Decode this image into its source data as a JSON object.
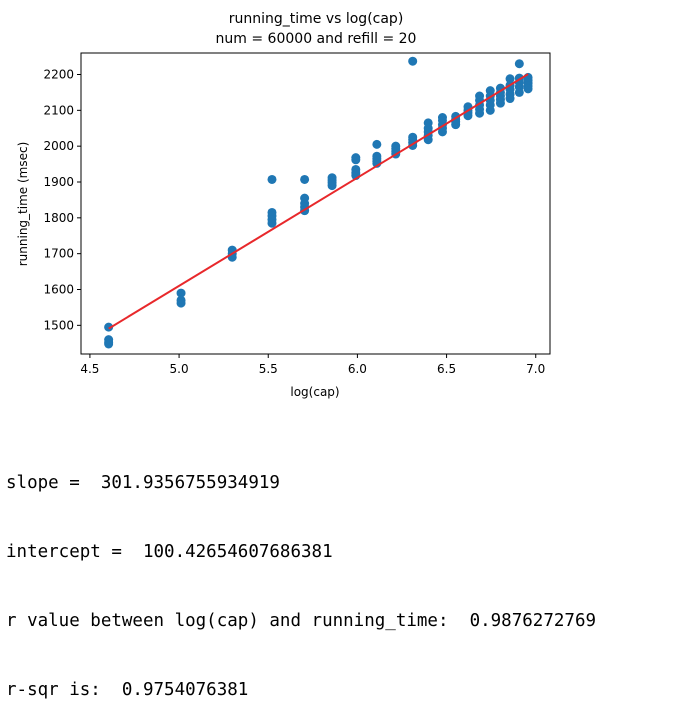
{
  "chart_data": {
    "type": "scatter",
    "title": "running_time vs log(cap)",
    "subtitle": "num = 60000 and refill = 20",
    "xlabel": "log(cap)",
    "ylabel": "running_time (msec)",
    "xlim": [
      4.45,
      7.08
    ],
    "ylim": [
      1420,
      2260
    ],
    "xticks": [
      4.5,
      5.0,
      5.5,
      6.0,
      6.5,
      7.0
    ],
    "xtick_labels": [
      "4.5",
      "5.0",
      "5.5",
      "6.0",
      "6.5",
      "7.0"
    ],
    "yticks": [
      1500,
      1600,
      1700,
      1800,
      1900,
      2000,
      2100,
      2200
    ],
    "ytick_labels": [
      "1500",
      "1600",
      "1700",
      "1800",
      "1900",
      "2000",
      "2100",
      "2200"
    ],
    "grid": false,
    "point_color": "#1f77b4",
    "line_color": "#e8282b",
    "points": [
      [
        4.605,
        1495
      ],
      [
        4.605,
        1460
      ],
      [
        4.605,
        1452
      ],
      [
        4.605,
        1448
      ],
      [
        5.011,
        1590
      ],
      [
        5.011,
        1570
      ],
      [
        5.011,
        1562
      ],
      [
        5.298,
        1710
      ],
      [
        5.298,
        1700
      ],
      [
        5.298,
        1690
      ],
      [
        5.521,
        1907
      ],
      [
        5.521,
        1815
      ],
      [
        5.521,
        1805
      ],
      [
        5.521,
        1795
      ],
      [
        5.521,
        1785
      ],
      [
        5.704,
        1907
      ],
      [
        5.704,
        1855
      ],
      [
        5.704,
        1840
      ],
      [
        5.704,
        1830
      ],
      [
        5.704,
        1820
      ],
      [
        5.858,
        1912
      ],
      [
        5.858,
        1905
      ],
      [
        5.858,
        1898
      ],
      [
        5.858,
        1890
      ],
      [
        5.991,
        1968
      ],
      [
        5.991,
        1962
      ],
      [
        5.991,
        1935
      ],
      [
        5.991,
        1925
      ],
      [
        5.991,
        1918
      ],
      [
        6.109,
        2005
      ],
      [
        6.109,
        1972
      ],
      [
        6.109,
        1965
      ],
      [
        6.109,
        1958
      ],
      [
        6.109,
        1952
      ],
      [
        6.215,
        2000
      ],
      [
        6.215,
        1993
      ],
      [
        6.215,
        1985
      ],
      [
        6.215,
        1978
      ],
      [
        6.31,
        2237
      ],
      [
        6.31,
        2025
      ],
      [
        6.31,
        2018
      ],
      [
        6.31,
        2010
      ],
      [
        6.31,
        2002
      ],
      [
        6.397,
        2065
      ],
      [
        6.397,
        2050
      ],
      [
        6.397,
        2040
      ],
      [
        6.397,
        2030
      ],
      [
        6.397,
        2018
      ],
      [
        6.477,
        2080
      ],
      [
        6.477,
        2072
      ],
      [
        6.477,
        2060
      ],
      [
        6.477,
        2050
      ],
      [
        6.477,
        2040
      ],
      [
        6.551,
        2083
      ],
      [
        6.551,
        2075
      ],
      [
        6.551,
        2068
      ],
      [
        6.551,
        2060
      ],
      [
        6.62,
        2110
      ],
      [
        6.62,
        2100
      ],
      [
        6.62,
        2093
      ],
      [
        6.62,
        2085
      ],
      [
        6.685,
        2140
      ],
      [
        6.685,
        2128
      ],
      [
        6.685,
        2115
      ],
      [
        6.685,
        2103
      ],
      [
        6.685,
        2092
      ],
      [
        6.745,
        2155
      ],
      [
        6.745,
        2140
      ],
      [
        6.745,
        2128
      ],
      [
        6.745,
        2115
      ],
      [
        6.745,
        2100
      ],
      [
        6.802,
        2162
      ],
      [
        6.802,
        2150
      ],
      [
        6.802,
        2140
      ],
      [
        6.802,
        2130
      ],
      [
        6.802,
        2120
      ],
      [
        6.856,
        2188
      ],
      [
        6.856,
        2170
      ],
      [
        6.856,
        2158
      ],
      [
        6.856,
        2145
      ],
      [
        6.856,
        2133
      ],
      [
        6.908,
        2230
      ],
      [
        6.908,
        2190
      ],
      [
        6.908,
        2178
      ],
      [
        6.908,
        2165
      ],
      [
        6.908,
        2150
      ],
      [
        6.957,
        2192
      ],
      [
        6.957,
        2184
      ],
      [
        6.957,
        2176
      ],
      [
        6.957,
        2168
      ],
      [
        6.957,
        2160
      ]
    ],
    "fit_line": {
      "slope": 301.9356755934919,
      "intercept": 100.42654607686381,
      "x_range": [
        4.605,
        6.957
      ]
    }
  },
  "output_lines": {
    "slope": "slope =  301.9356755934919",
    "intercept": "intercept =  100.42654607686381",
    "r_value": "r value between log(cap) and running_time:  0.9876272769",
    "r_sqr": "r-sqr is:  0.9754076381"
  }
}
